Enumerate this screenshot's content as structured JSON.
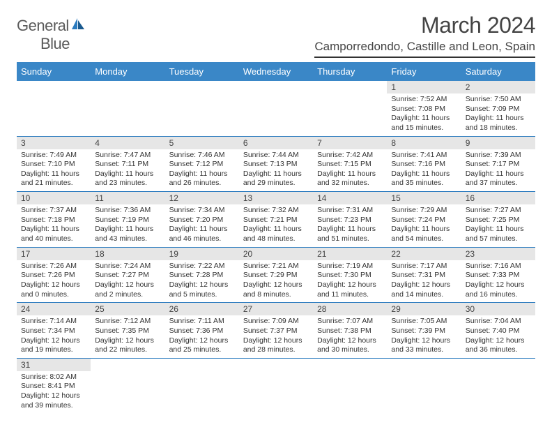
{
  "logo": {
    "text1": "General",
    "text2": "Blue"
  },
  "title": "March 2024",
  "location": "Camporredondo, Castille and Leon, Spain",
  "colors": {
    "header_bg": "#3a87c7",
    "header_text": "#ffffff",
    "daynum_bg": "#e6e6e6",
    "row_border": "#2b7bbf",
    "logo_blue": "#2b7bbf",
    "text": "#333333"
  },
  "day_headers": [
    "Sunday",
    "Monday",
    "Tuesday",
    "Wednesday",
    "Thursday",
    "Friday",
    "Saturday"
  ],
  "weeks": [
    [
      null,
      null,
      null,
      null,
      null,
      {
        "n": "1",
        "sr": "Sunrise: 7:52 AM",
        "ss": "Sunset: 7:08 PM",
        "dl1": "Daylight: 11 hours",
        "dl2": "and 15 minutes."
      },
      {
        "n": "2",
        "sr": "Sunrise: 7:50 AM",
        "ss": "Sunset: 7:09 PM",
        "dl1": "Daylight: 11 hours",
        "dl2": "and 18 minutes."
      }
    ],
    [
      {
        "n": "3",
        "sr": "Sunrise: 7:49 AM",
        "ss": "Sunset: 7:10 PM",
        "dl1": "Daylight: 11 hours",
        "dl2": "and 21 minutes."
      },
      {
        "n": "4",
        "sr": "Sunrise: 7:47 AM",
        "ss": "Sunset: 7:11 PM",
        "dl1": "Daylight: 11 hours",
        "dl2": "and 23 minutes."
      },
      {
        "n": "5",
        "sr": "Sunrise: 7:46 AM",
        "ss": "Sunset: 7:12 PM",
        "dl1": "Daylight: 11 hours",
        "dl2": "and 26 minutes."
      },
      {
        "n": "6",
        "sr": "Sunrise: 7:44 AM",
        "ss": "Sunset: 7:13 PM",
        "dl1": "Daylight: 11 hours",
        "dl2": "and 29 minutes."
      },
      {
        "n": "7",
        "sr": "Sunrise: 7:42 AM",
        "ss": "Sunset: 7:15 PM",
        "dl1": "Daylight: 11 hours",
        "dl2": "and 32 minutes."
      },
      {
        "n": "8",
        "sr": "Sunrise: 7:41 AM",
        "ss": "Sunset: 7:16 PM",
        "dl1": "Daylight: 11 hours",
        "dl2": "and 35 minutes."
      },
      {
        "n": "9",
        "sr": "Sunrise: 7:39 AM",
        "ss": "Sunset: 7:17 PM",
        "dl1": "Daylight: 11 hours",
        "dl2": "and 37 minutes."
      }
    ],
    [
      {
        "n": "10",
        "sr": "Sunrise: 7:37 AM",
        "ss": "Sunset: 7:18 PM",
        "dl1": "Daylight: 11 hours",
        "dl2": "and 40 minutes."
      },
      {
        "n": "11",
        "sr": "Sunrise: 7:36 AM",
        "ss": "Sunset: 7:19 PM",
        "dl1": "Daylight: 11 hours",
        "dl2": "and 43 minutes."
      },
      {
        "n": "12",
        "sr": "Sunrise: 7:34 AM",
        "ss": "Sunset: 7:20 PM",
        "dl1": "Daylight: 11 hours",
        "dl2": "and 46 minutes."
      },
      {
        "n": "13",
        "sr": "Sunrise: 7:32 AM",
        "ss": "Sunset: 7:21 PM",
        "dl1": "Daylight: 11 hours",
        "dl2": "and 48 minutes."
      },
      {
        "n": "14",
        "sr": "Sunrise: 7:31 AM",
        "ss": "Sunset: 7:23 PM",
        "dl1": "Daylight: 11 hours",
        "dl2": "and 51 minutes."
      },
      {
        "n": "15",
        "sr": "Sunrise: 7:29 AM",
        "ss": "Sunset: 7:24 PM",
        "dl1": "Daylight: 11 hours",
        "dl2": "and 54 minutes."
      },
      {
        "n": "16",
        "sr": "Sunrise: 7:27 AM",
        "ss": "Sunset: 7:25 PM",
        "dl1": "Daylight: 11 hours",
        "dl2": "and 57 minutes."
      }
    ],
    [
      {
        "n": "17",
        "sr": "Sunrise: 7:26 AM",
        "ss": "Sunset: 7:26 PM",
        "dl1": "Daylight: 12 hours",
        "dl2": "and 0 minutes."
      },
      {
        "n": "18",
        "sr": "Sunrise: 7:24 AM",
        "ss": "Sunset: 7:27 PM",
        "dl1": "Daylight: 12 hours",
        "dl2": "and 2 minutes."
      },
      {
        "n": "19",
        "sr": "Sunrise: 7:22 AM",
        "ss": "Sunset: 7:28 PM",
        "dl1": "Daylight: 12 hours",
        "dl2": "and 5 minutes."
      },
      {
        "n": "20",
        "sr": "Sunrise: 7:21 AM",
        "ss": "Sunset: 7:29 PM",
        "dl1": "Daylight: 12 hours",
        "dl2": "and 8 minutes."
      },
      {
        "n": "21",
        "sr": "Sunrise: 7:19 AM",
        "ss": "Sunset: 7:30 PM",
        "dl1": "Daylight: 12 hours",
        "dl2": "and 11 minutes."
      },
      {
        "n": "22",
        "sr": "Sunrise: 7:17 AM",
        "ss": "Sunset: 7:31 PM",
        "dl1": "Daylight: 12 hours",
        "dl2": "and 14 minutes."
      },
      {
        "n": "23",
        "sr": "Sunrise: 7:16 AM",
        "ss": "Sunset: 7:33 PM",
        "dl1": "Daylight: 12 hours",
        "dl2": "and 16 minutes."
      }
    ],
    [
      {
        "n": "24",
        "sr": "Sunrise: 7:14 AM",
        "ss": "Sunset: 7:34 PM",
        "dl1": "Daylight: 12 hours",
        "dl2": "and 19 minutes."
      },
      {
        "n": "25",
        "sr": "Sunrise: 7:12 AM",
        "ss": "Sunset: 7:35 PM",
        "dl1": "Daylight: 12 hours",
        "dl2": "and 22 minutes."
      },
      {
        "n": "26",
        "sr": "Sunrise: 7:11 AM",
        "ss": "Sunset: 7:36 PM",
        "dl1": "Daylight: 12 hours",
        "dl2": "and 25 minutes."
      },
      {
        "n": "27",
        "sr": "Sunrise: 7:09 AM",
        "ss": "Sunset: 7:37 PM",
        "dl1": "Daylight: 12 hours",
        "dl2": "and 28 minutes."
      },
      {
        "n": "28",
        "sr": "Sunrise: 7:07 AM",
        "ss": "Sunset: 7:38 PM",
        "dl1": "Daylight: 12 hours",
        "dl2": "and 30 minutes."
      },
      {
        "n": "29",
        "sr": "Sunrise: 7:05 AM",
        "ss": "Sunset: 7:39 PM",
        "dl1": "Daylight: 12 hours",
        "dl2": "and 33 minutes."
      },
      {
        "n": "30",
        "sr": "Sunrise: 7:04 AM",
        "ss": "Sunset: 7:40 PM",
        "dl1": "Daylight: 12 hours",
        "dl2": "and 36 minutes."
      }
    ],
    [
      {
        "n": "31",
        "sr": "Sunrise: 8:02 AM",
        "ss": "Sunset: 8:41 PM",
        "dl1": "Daylight: 12 hours",
        "dl2": "and 39 minutes."
      },
      null,
      null,
      null,
      null,
      null,
      null
    ]
  ]
}
